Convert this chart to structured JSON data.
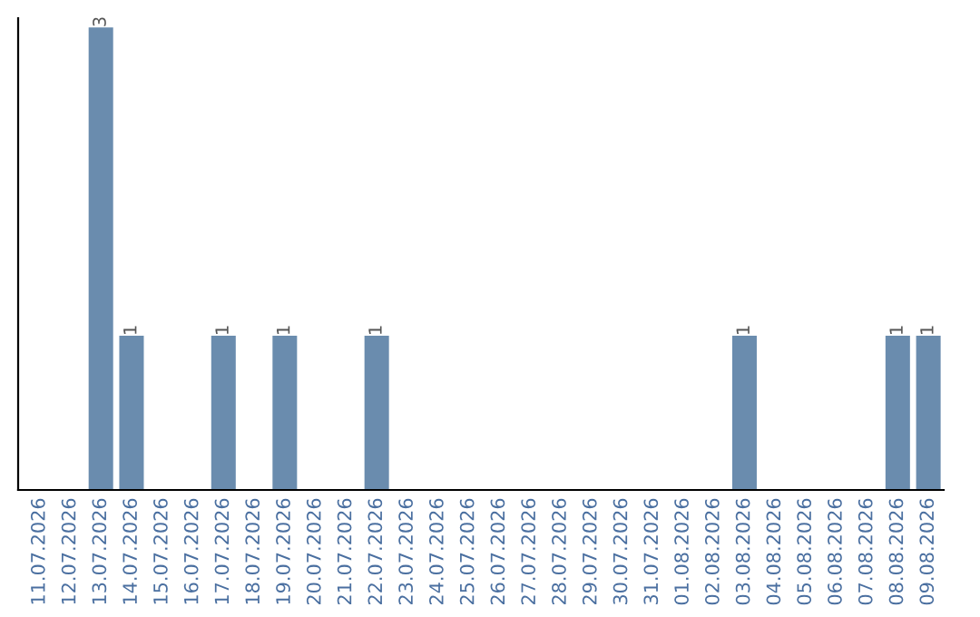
{
  "chart_data": {
    "type": "bar",
    "categories": [
      "11.07.2026",
      "12.07.2026",
      "13.07.2026",
      "14.07.2026",
      "15.07.2026",
      "16.07.2026",
      "17.07.2026",
      "18.07.2026",
      "19.07.2026",
      "20.07.2026",
      "21.07.2026",
      "22.07.2026",
      "23.07.2026",
      "24.07.2026",
      "25.07.2026",
      "26.07.2026",
      "27.07.2026",
      "28.07.2026",
      "29.07.2026",
      "30.07.2026",
      "31.07.2026",
      "01.08.2026",
      "02.08.2026",
      "03.08.2026",
      "04.08.2026",
      "05.08.2026",
      "06.08.2026",
      "07.08.2026",
      "08.08.2026",
      "09.08.2026"
    ],
    "values": [
      0,
      0,
      3,
      1,
      0,
      0,
      1,
      0,
      1,
      0,
      0,
      1,
      0,
      0,
      0,
      0,
      0,
      0,
      0,
      0,
      0,
      0,
      0,
      1,
      0,
      0,
      0,
      0,
      1,
      1
    ],
    "value_labels": [
      null,
      null,
      "3",
      "1",
      null,
      null,
      "1",
      null,
      "1",
      null,
      null,
      "1",
      null,
      null,
      null,
      null,
      null,
      null,
      null,
      null,
      null,
      null,
      null,
      "1",
      null,
      null,
      null,
      null,
      "1",
      "1"
    ],
    "color": "#6a8cae",
    "grid": false,
    "legend": false
  }
}
